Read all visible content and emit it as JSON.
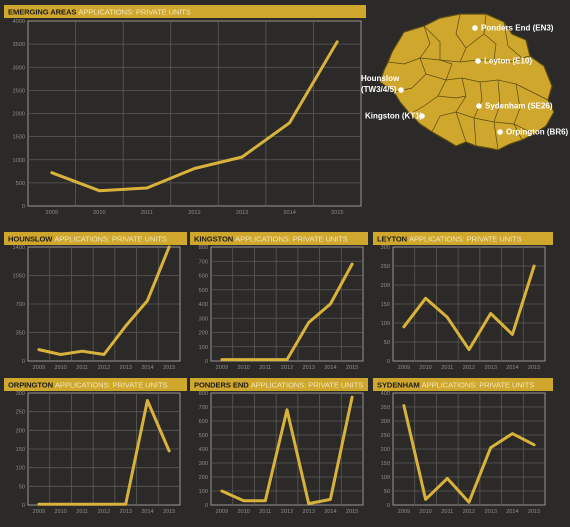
{
  "colors": {
    "background": "#2b2a29",
    "accent": "#cfa72c",
    "line": "#d8b23a",
    "map_fill": "#cfa72c",
    "map_stroke": "#5a4a14"
  },
  "map": {
    "locations": [
      {
        "id": "ponders-end",
        "label": "Ponders End (EN3)"
      },
      {
        "id": "leyton",
        "label": "Leyton (E10)"
      },
      {
        "id": "hounslow",
        "label_line1": "Hounslow",
        "label_line2": "(TW3/4/5)"
      },
      {
        "id": "sydenham",
        "label": "Sydenham (SE26)"
      },
      {
        "id": "kingston",
        "label": "Kingston (KT1)"
      },
      {
        "id": "orpington",
        "label": "Orpington (BR6)"
      }
    ]
  },
  "chart_data": [
    {
      "type": "line",
      "title_bold": "EMERGING AREAS",
      "title_light": "APPLICATIONS: PRIVATE UNITS",
      "x": [
        "2009",
        "2010",
        "2011",
        "2012",
        "2013",
        "2014",
        "2015"
      ],
      "ylim": [
        0,
        4000
      ],
      "yticks": [
        0,
        500,
        1000,
        1500,
        2000,
        2500,
        3000,
        3500,
        4000
      ],
      "grid": true,
      "series": [
        {
          "values": [
            720,
            330,
            390,
            810,
            1060,
            1800,
            3550
          ]
        }
      ]
    },
    {
      "type": "line",
      "title_bold": "HOUNSLOW",
      "title_light": "APPLICATIONS: PRIVATE UNITS",
      "x": [
        "2009",
        "2010",
        "2011",
        "2012",
        "2013",
        "2014",
        "2015"
      ],
      "ylim": [
        0,
        1400
      ],
      "yticks": [
        0,
        350,
        700,
        1050,
        1400
      ],
      "grid": true,
      "series": [
        {
          "values": [
            140,
            80,
            120,
            80,
            430,
            740,
            1400
          ]
        }
      ]
    },
    {
      "type": "line",
      "title_bold": "KINGSTON",
      "title_light": "APPLICATIONS: PRIVATE UNITS",
      "x": [
        "2009",
        "2010",
        "2011",
        "2012",
        "2013",
        "2014",
        "2015"
      ],
      "ylim": [
        0,
        800
      ],
      "yticks": [
        0,
        100,
        200,
        300,
        400,
        500,
        600,
        700,
        800
      ],
      "grid": true,
      "series": [
        {
          "values": [
            10,
            10,
            10,
            10,
            270,
            400,
            680
          ]
        }
      ]
    },
    {
      "type": "line",
      "title_bold": "LEYTON",
      "title_light": "APPLICATIONS: PRIVATE UNITS",
      "x": [
        "2009",
        "2010",
        "2011",
        "2012",
        "2013",
        "2014",
        "2015"
      ],
      "ylim": [
        0,
        300
      ],
      "yticks": [
        0,
        50,
        100,
        150,
        200,
        250,
        300
      ],
      "grid": true,
      "series": [
        {
          "values": [
            90,
            165,
            115,
            30,
            125,
            70,
            250
          ]
        }
      ]
    },
    {
      "type": "line",
      "title_bold": "ORPINGTON",
      "title_light": "APPLICATIONS: PRIVATE UNITS",
      "x": [
        "2009",
        "2010",
        "2011",
        "2012",
        "2013",
        "2014",
        "2015"
      ],
      "ylim": [
        0,
        300
      ],
      "yticks": [
        0,
        50,
        100,
        150,
        200,
        250,
        300
      ],
      "grid": true,
      "series": [
        {
          "values": [
            2,
            2,
            2,
            2,
            2,
            280,
            145
          ]
        }
      ]
    },
    {
      "type": "line",
      "title_bold": "PONDERS END",
      "title_light": "APPLICATIONS: PRIVATE UNITS",
      "x": [
        "2009",
        "2010",
        "2011",
        "2012",
        "2013",
        "2014",
        "2015"
      ],
      "ylim": [
        0,
        800
      ],
      "yticks": [
        0,
        100,
        200,
        300,
        400,
        500,
        600,
        700,
        800
      ],
      "grid": true,
      "series": [
        {
          "values": [
            100,
            30,
            30,
            680,
            10,
            40,
            770
          ]
        }
      ]
    },
    {
      "type": "line",
      "title_bold": "SYDENHAM",
      "title_light": "APPLICATIONS: PRIVATE UNITS",
      "x": [
        "2009",
        "2010",
        "2011",
        "2012",
        "2013",
        "2014",
        "2015"
      ],
      "ylim": [
        0,
        400
      ],
      "yticks": [
        0,
        50,
        100,
        150,
        200,
        250,
        300,
        350,
        400
      ],
      "grid": true,
      "series": [
        {
          "values": [
            355,
            20,
            95,
            10,
            205,
            255,
            215
          ]
        }
      ]
    }
  ]
}
